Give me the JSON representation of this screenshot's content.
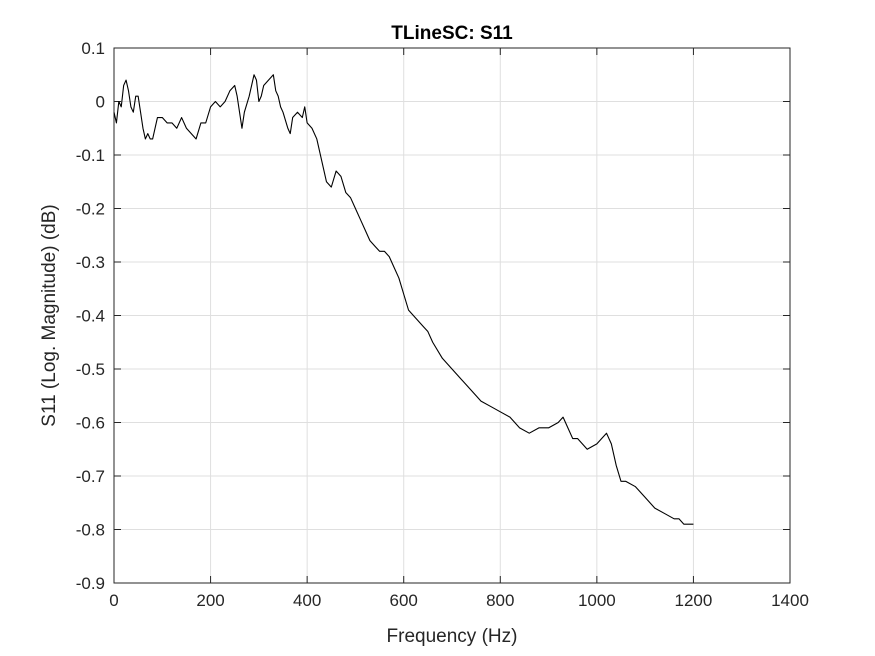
{
  "chart_data": {
    "type": "line",
    "title": "TLineSC: S11",
    "xlabel": "Frequency (Hz)",
    "ylabel": "S11 (Log. Magnitude) (dB)",
    "xlim": [
      0,
      1400
    ],
    "ylim": [
      -0.9,
      0.1
    ],
    "xticks": [
      0,
      200,
      400,
      600,
      800,
      1000,
      1200,
      1400
    ],
    "yticks": [
      0.1,
      0,
      -0.1,
      -0.2,
      -0.3,
      -0.4,
      -0.5,
      -0.6,
      -0.7,
      -0.8,
      -0.9
    ],
    "xtick_labels": [
      "0",
      "200",
      "400",
      "600",
      "800",
      "1000",
      "1200",
      "1400"
    ],
    "ytick_labels": [
      "0.1",
      "0",
      "-0.1",
      "-0.2",
      "-0.3",
      "-0.4",
      "-0.5",
      "-0.6",
      "-0.7",
      "-0.8",
      "-0.9"
    ],
    "grid": true,
    "line_color": "#000000",
    "grid_color": "#dfdfdf",
    "series": [
      {
        "x": [
          0,
          5,
          10,
          15,
          20,
          25,
          30,
          35,
          40,
          45,
          50,
          55,
          60,
          65,
          70,
          75,
          80,
          90,
          100,
          110,
          120,
          130,
          140,
          150,
          160,
          170,
          180,
          190,
          200,
          210,
          220,
          230,
          240,
          250,
          255,
          260,
          265,
          270,
          280,
          290,
          295,
          300,
          305,
          310,
          320,
          330,
          335,
          340,
          345,
          350,
          360,
          365,
          370,
          380,
          390,
          395,
          400,
          410,
          420,
          430,
          440,
          450,
          460,
          470,
          480,
          490,
          500,
          510,
          520,
          530,
          540,
          550,
          560,
          570,
          580,
          590,
          600,
          610,
          620,
          630,
          640,
          650,
          660,
          680,
          700,
          720,
          740,
          760,
          780,
          800,
          820,
          840,
          860,
          880,
          900,
          920,
          930,
          940,
          950,
          960,
          980,
          1000,
          1010,
          1020,
          1030,
          1040,
          1050,
          1060,
          1080,
          1100,
          1120,
          1140,
          1160,
          1170,
          1180,
          1190,
          1200
        ],
        "y": [
          -0.02,
          -0.04,
          0.0,
          -0.01,
          0.03,
          0.04,
          0.02,
          -0.01,
          -0.02,
          0.01,
          0.01,
          -0.02,
          -0.05,
          -0.07,
          -0.06,
          -0.07,
          -0.07,
          -0.03,
          -0.03,
          -0.04,
          -0.04,
          -0.05,
          -0.03,
          -0.05,
          -0.06,
          -0.07,
          -0.04,
          -0.04,
          -0.01,
          0.0,
          -0.01,
          0.0,
          0.02,
          0.03,
          0.01,
          -0.02,
          -0.05,
          -0.02,
          0.01,
          0.05,
          0.04,
          0.0,
          0.01,
          0.03,
          0.04,
          0.05,
          0.02,
          0.01,
          -0.01,
          -0.02,
          -0.05,
          -0.06,
          -0.03,
          -0.02,
          -0.03,
          -0.01,
          -0.04,
          -0.05,
          -0.07,
          -0.11,
          -0.15,
          -0.16,
          -0.13,
          -0.14,
          -0.17,
          -0.18,
          -0.2,
          -0.22,
          -0.24,
          -0.26,
          -0.27,
          -0.28,
          -0.28,
          -0.29,
          -0.31,
          -0.33,
          -0.36,
          -0.39,
          -0.4,
          -0.41,
          -0.42,
          -0.43,
          -0.45,
          -0.48,
          -0.5,
          -0.52,
          -0.54,
          -0.56,
          -0.57,
          -0.58,
          -0.59,
          -0.61,
          -0.62,
          -0.61,
          -0.61,
          -0.6,
          -0.59,
          -0.61,
          -0.63,
          -0.63,
          -0.65,
          -0.64,
          -0.63,
          -0.62,
          -0.64,
          -0.68,
          -0.71,
          -0.71,
          -0.72,
          -0.74,
          -0.76,
          -0.77,
          -0.78,
          -0.78,
          -0.79,
          -0.79,
          -0.79
        ]
      }
    ]
  }
}
